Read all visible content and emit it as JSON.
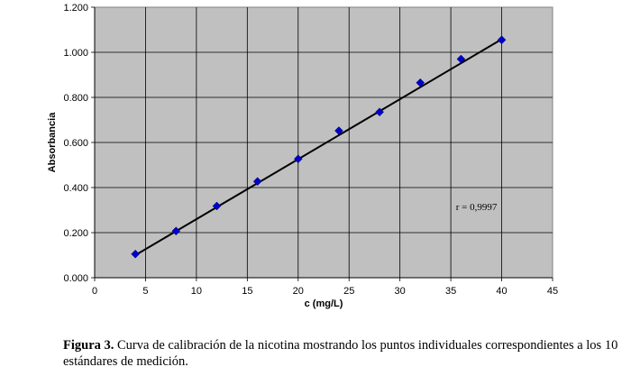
{
  "chart_data": {
    "type": "scatter",
    "title": "",
    "xlabel": "c (mg/L)",
    "ylabel": "Absorbancia",
    "xlim": [
      0,
      45
    ],
    "ylim": [
      0,
      1.2
    ],
    "x_ticks": [
      "0",
      "5",
      "10",
      "15",
      "20",
      "25",
      "30",
      "35",
      "40",
      "45"
    ],
    "y_ticks": [
      "0.000",
      "0.200",
      "0.400",
      "0.600",
      "0.800",
      "1.000",
      "1.200"
    ],
    "grid": true,
    "background_color": "#c0c0c0",
    "marker_color": "#0000cc",
    "line_color": "#000000",
    "points": [
      {
        "x": 4,
        "y": 0.105
      },
      {
        "x": 8,
        "y": 0.207
      },
      {
        "x": 12,
        "y": 0.318
      },
      {
        "x": 16,
        "y": 0.427
      },
      {
        "x": 20,
        "y": 0.527
      },
      {
        "x": 24,
        "y": 0.652
      },
      {
        "x": 28,
        "y": 0.735
      },
      {
        "x": 32,
        "y": 0.865
      },
      {
        "x": 36,
        "y": 0.97
      },
      {
        "x": 40,
        "y": 1.055
      }
    ],
    "fit_line": {
      "x": [
        4,
        40
      ],
      "y": [
        0.1,
        1.058
      ]
    },
    "annotation": {
      "text": "r = 0,9997",
      "x": 35.5,
      "y": 0.3
    }
  },
  "caption": {
    "label": "Figura 3.",
    "text": " Curva de calibración de la nicotina mostrando los puntos individuales correspondientes a los 10 estándares de medición."
  }
}
